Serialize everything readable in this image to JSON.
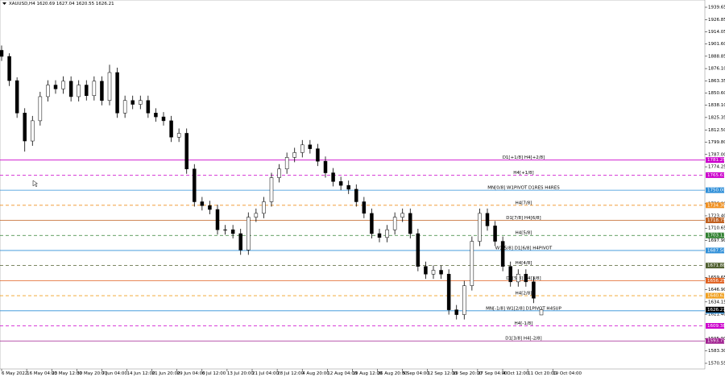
{
  "chart_data": {
    "type": "candlestick",
    "title": "XAUUSD,H4  1620.69 1627.04 1620.55 1626.21",
    "ylim": [
      1564.7,
      1947.17
    ],
    "yticks": [
      {
        "value": 1939.65,
        "label": "1939.65"
      },
      {
        "value": 1926.85,
        "label": "1926.85"
      },
      {
        "value": 1914.05,
        "label": "1914.05"
      },
      {
        "value": 1901.6,
        "label": "1901.60"
      },
      {
        "value": 1888.85,
        "label": "1888.85"
      },
      {
        "value": 1876.1,
        "label": "1876.10"
      },
      {
        "value": 1863.35,
        "label": "1863.35"
      },
      {
        "value": 1850.6,
        "label": "1850.60"
      },
      {
        "value": 1838.1,
        "label": "1838.10"
      },
      {
        "value": 1825.35,
        "label": "1825.35"
      },
      {
        "value": 1812.5,
        "label": "1812.50"
      },
      {
        "value": 1799.8,
        "label": "1799.80"
      },
      {
        "value": 1787.0,
        "label": "1787.00"
      },
      {
        "value": 1774.25,
        "label": "1774.25"
      },
      {
        "value": 1736.0,
        "label": "1736.00"
      },
      {
        "value": 1723.4,
        "label": "1723.40"
      },
      {
        "value": 1710.65,
        "label": "1710.65"
      },
      {
        "value": 1697.9,
        "label": "1697.90"
      },
      {
        "value": 1659.65,
        "label": "1659.65"
      },
      {
        "value": 1646.9,
        "label": "1646.90"
      },
      {
        "value": 1634.15,
        "label": "1634.15"
      },
      {
        "value": 1621.4,
        "label": "1621.40"
      },
      {
        "value": 1595.9,
        "label": "1595.90"
      },
      {
        "value": 1583.3,
        "label": "1583.30"
      },
      {
        "value": 1570.55,
        "label": "1570.55"
      }
    ],
    "categories": [
      "6 May 2022",
      "16 May 04:00",
      "23 May 12:00",
      "30 May 20:00",
      "7 Jun 04:00",
      "14 Jun 12:00",
      "21 Jun 20:00",
      "29 Jun 04:00",
      "6 Jul 12:00",
      "13 Jul 20:00",
      "21 Jul 04:00",
      "28 Jul 12:00",
      "4 Aug 20:00",
      "12 Aug 04:00",
      "19 Aug 12:00",
      "26 Aug 20:00",
      "5 Sep 04:00",
      "12 Sep 12:00",
      "19 Sep 20:00",
      "27 Sep 04:00",
      "4 Oct 12:00",
      "11 Oct 20:00",
      "19 Oct 04:00"
    ],
    "ohlc": [
      [
        1895,
        1900,
        1884,
        1888.7
      ],
      [
        1888.7,
        1892,
        1858,
        1863.6
      ],
      [
        1863.6,
        1867,
        1825,
        1830
      ],
      [
        1830,
        1835,
        1790,
        1801
      ],
      [
        1801,
        1827,
        1796,
        1822
      ],
      [
        1822,
        1852,
        1817,
        1847
      ],
      [
        1847,
        1864,
        1842,
        1859
      ],
      [
        1859,
        1864,
        1850,
        1855
      ],
      [
        1855,
        1868,
        1850,
        1863
      ],
      [
        1863,
        1868,
        1842,
        1847
      ],
      [
        1847,
        1864,
        1842,
        1859
      ],
      [
        1859,
        1864,
        1843,
        1848
      ],
      [
        1848,
        1868,
        1843,
        1863
      ],
      [
        1863,
        1868,
        1838,
        1843
      ],
      [
        1843,
        1880,
        1838,
        1872
      ],
      [
        1872,
        1877,
        1825,
        1830
      ],
      [
        1830,
        1848,
        1825,
        1843
      ],
      [
        1843,
        1848,
        1834,
        1839
      ],
      [
        1839,
        1848,
        1834,
        1843
      ],
      [
        1843,
        1848,
        1825,
        1830
      ],
      [
        1830,
        1835,
        1821,
        1826
      ],
      [
        1826,
        1831,
        1817,
        1822
      ],
      [
        1822,
        1827,
        1800,
        1805
      ],
      [
        1805,
        1814,
        1800,
        1809
      ],
      [
        1809,
        1814,
        1767,
        1772
      ],
      [
        1772,
        1777,
        1733,
        1738
      ],
      [
        1738,
        1743,
        1729,
        1734
      ],
      [
        1734,
        1739,
        1725,
        1730
      ],
      [
        1730,
        1735,
        1704,
        1709
      ],
      [
        1709,
        1714,
        1704,
        1709
      ],
      [
        1709,
        1714,
        1700,
        1705
      ],
      [
        1705,
        1710,
        1683,
        1688
      ],
      [
        1688,
        1727,
        1683,
        1722
      ],
      [
        1722,
        1731,
        1717,
        1726
      ],
      [
        1726,
        1743,
        1721,
        1738
      ],
      [
        1738,
        1768,
        1733,
        1763
      ],
      [
        1763,
        1777,
        1758,
        1772
      ],
      [
        1772,
        1789,
        1767,
        1784
      ],
      [
        1784,
        1794,
        1779,
        1789
      ],
      [
        1789,
        1802,
        1784,
        1797
      ],
      [
        1797,
        1802,
        1788,
        1793
      ],
      [
        1793,
        1798,
        1775,
        1780
      ],
      [
        1780,
        1785,
        1763,
        1768
      ],
      [
        1768,
        1773,
        1754,
        1759
      ],
      [
        1759,
        1764,
        1750,
        1755
      ],
      [
        1755,
        1760,
        1746,
        1751
      ],
      [
        1751,
        1756,
        1733,
        1738
      ],
      [
        1738,
        1743,
        1721,
        1726
      ],
      [
        1726,
        1731,
        1700,
        1705
      ],
      [
        1705,
        1710,
        1696,
        1701
      ],
      [
        1701,
        1714,
        1696,
        1709
      ],
      [
        1709,
        1727,
        1704,
        1722
      ],
      [
        1722,
        1731,
        1717,
        1726
      ],
      [
        1726,
        1731,
        1700,
        1705
      ],
      [
        1705,
        1710,
        1666,
        1671
      ],
      [
        1671,
        1676,
        1658,
        1663
      ],
      [
        1663,
        1672,
        1658,
        1667
      ],
      [
        1667,
        1672,
        1658,
        1663
      ],
      [
        1663,
        1668,
        1621,
        1626
      ],
      [
        1626,
        1631,
        1616,
        1621
      ],
      [
        1621,
        1656,
        1616,
        1651
      ],
      [
        1651,
        1702,
        1646,
        1697
      ],
      [
        1697,
        1731,
        1692,
        1726
      ],
      [
        1726,
        1731,
        1708,
        1713
      ],
      [
        1713,
        1718,
        1692,
        1697
      ],
      [
        1697,
        1702,
        1666,
        1671
      ],
      [
        1671,
        1676,
        1650,
        1655
      ],
      [
        1655,
        1668,
        1650,
        1663
      ],
      [
        1663,
        1668,
        1650,
        1655
      ],
      [
        1655,
        1660,
        1633,
        1638
      ],
      [
        1620.69,
        1627.04,
        1620.55,
        1626.21
      ]
    ],
    "current_price": {
      "value": 1626.21,
      "label": "1626.21"
    },
    "levels": [
      {
        "text": "D1[+1/8] H4[+2/8]",
        "price": {
          "value": 1781.25,
          "label": "1781.25"
        },
        "color": "#cc00cc",
        "dashed": false
      },
      {
        "text": "H4[+1/8]",
        "price": {
          "value": 1765.63,
          "label": "1765.63"
        },
        "color": "#cc00cc",
        "dashed": true
      },
      {
        "text": "MN[0/8] W1PIVOT D1RES H4RES",
        "price": {
          "value": 1750.0,
          "label": "1750.00"
        },
        "color": "#2f8fd8",
        "dashed": false
      },
      {
        "text": "H4[7/8]",
        "price": {
          "value": 1734.38,
          "label": "1734.38"
        },
        "color": "#f09020",
        "dashed": true
      },
      {
        "text": "D1[7/8] H4[6/8]",
        "price": {
          "value": 1718.75,
          "label": "1718.75"
        },
        "color": "#c06020",
        "dashed": false
      },
      {
        "text": "H4[5/8]",
        "price": {
          "value": 1703.13,
          "label": "1703.13"
        },
        "color": "#308030",
        "dashed": true
      },
      {
        "text": "W1[5/8] D1[6/8] H4PIVOT",
        "price": {
          "value": 1687.5,
          "label": "1687.50"
        },
        "color": "#2f8fd8",
        "dashed": false
      },
      {
        "text": "H4[4/8]",
        "price": {
          "value": 1671.88,
          "label": "1671.88"
        },
        "color": "#506030",
        "dashed": true
      },
      {
        "text": "D1[5/8] H4[3/8]",
        "price": {
          "value": 1656.25,
          "label": "1656.25"
        },
        "color": "#e06020",
        "dashed": false
      },
      {
        "text": "H4[2/8]",
        "price": {
          "value": 1640.63,
          "label": "1640.63"
        },
        "color": "#f0a020",
        "dashed": true
      },
      {
        "text": "MN[-1/8] W1[2/8] D1PIVOT H4SUP",
        "price": {
          "value": 1625.0,
          "label": "1625.00"
        },
        "color": "#2f8fd8",
        "dashed": false
      },
      {
        "text": "H4[-1/8]",
        "price": {
          "value": 1609.38,
          "label": "1609.38"
        },
        "color": "#cc00cc",
        "dashed": true
      },
      {
        "text": "D1[3/8] H4[-2/8]",
        "price": {
          "value": 1593.75,
          "label": "1593.75"
        },
        "color": "#a02090",
        "dashed": false
      }
    ]
  }
}
